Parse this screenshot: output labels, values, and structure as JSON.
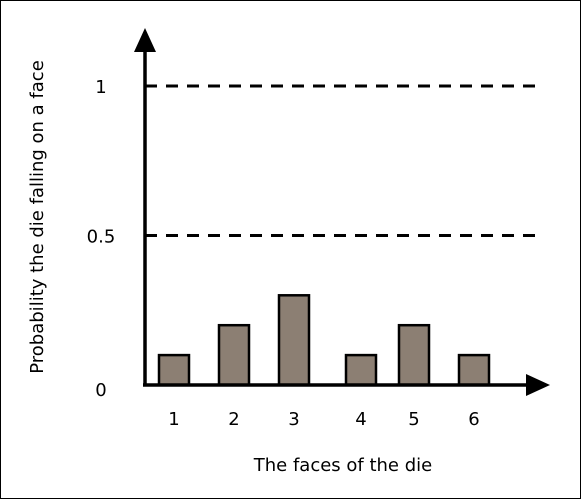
{
  "chart_data": {
    "type": "bar",
    "categories": [
      "1",
      "2",
      "3",
      "4",
      "5",
      "6"
    ],
    "values": [
      0.1,
      0.2,
      0.3,
      0.1,
      0.2,
      0.1
    ],
    "xlabel": "The faces of the die",
    "ylabel": "Probability the die falling on a face",
    "ylim": [
      0,
      1
    ],
    "yticks": [
      {
        "value": 0,
        "label": "0"
      },
      {
        "value": 0.5,
        "label": "0.5"
      },
      {
        "value": 1,
        "label": "1"
      }
    ],
    "reference_lines": [
      0.5,
      1
    ],
    "grid": false,
    "legend": "none",
    "bar_color": "#8c7f73",
    "bar_edge_color": "#000000"
  }
}
